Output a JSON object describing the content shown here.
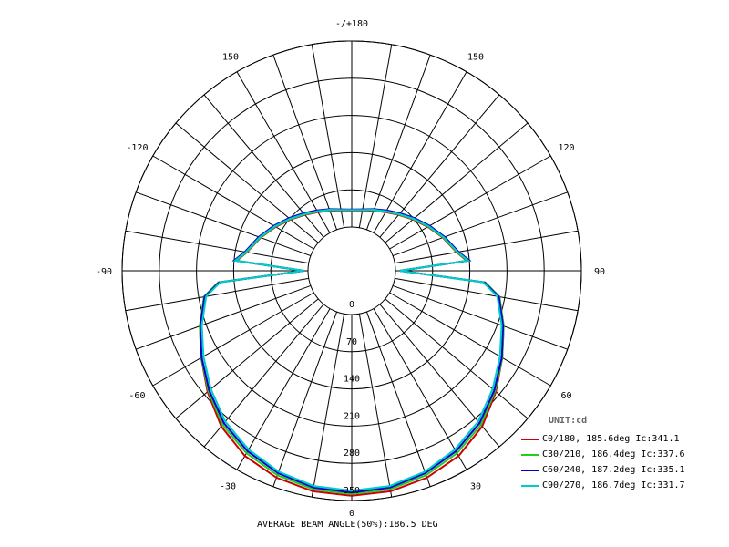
{
  "chart_data": {
    "type": "polar",
    "radial_ticks": [
      "0",
      "70",
      "140",
      "210",
      "280",
      "350"
    ],
    "radial_max": 350,
    "angle_labels": [
      {
        "deg": 180,
        "label": "-/+180"
      },
      {
        "deg": -150,
        "label": "-150"
      },
      {
        "deg": 150,
        "label": "150"
      },
      {
        "deg": -120,
        "label": "-120"
      },
      {
        "deg": 120,
        "label": "120"
      },
      {
        "deg": -90,
        "label": "-90"
      },
      {
        "deg": 90,
        "label": "90"
      },
      {
        "deg": -60,
        "label": "-60"
      },
      {
        "deg": 60,
        "label": "60"
      },
      {
        "deg": -30,
        "label": "-30"
      },
      {
        "deg": 30,
        "label": "30"
      },
      {
        "deg": 0,
        "label": "0"
      }
    ],
    "grid": true,
    "legend_title": "UNIT:cd",
    "series": [
      {
        "name": "C0/180, 185.6deg Ic:341.1",
        "color": "#cc0000",
        "angles": [
          0,
          10,
          20,
          30,
          40,
          50,
          60,
          70,
          80,
          85,
          90,
          95,
          100,
          110,
          120,
          130,
          140,
          150,
          160,
          170,
          180
        ],
        "values": [
          341.1,
          339,
          332,
          320,
          300,
          272,
          245,
          222,
          200,
          170,
          8,
          135,
          118,
          100,
          83,
          68,
          55,
          45,
          38,
          33,
          31
        ]
      },
      {
        "name": "C30/210, 186.4deg Ic:337.6",
        "color": "#22cc22",
        "angles": [
          0,
          10,
          20,
          30,
          40,
          50,
          60,
          70,
          80,
          85,
          90,
          95,
          100,
          110,
          120,
          130,
          140,
          150,
          160,
          170,
          180
        ],
        "values": [
          337.6,
          335,
          327,
          314,
          296,
          270,
          245,
          222,
          200,
          170,
          8,
          136,
          119,
          101,
          84,
          69,
          56,
          46,
          39,
          34,
          32
        ]
      },
      {
        "name": "C60/240, 187.2deg Ic:335.1",
        "color": "#0000cc",
        "angles": [
          0,
          10,
          20,
          30,
          40,
          50,
          60,
          70,
          80,
          85,
          90,
          95,
          100,
          110,
          120,
          130,
          140,
          150,
          160,
          170,
          180
        ],
        "values": [
          335.1,
          332,
          323,
          310,
          292,
          268,
          244,
          221,
          199,
          168,
          8,
          140,
          122,
          104,
          87,
          72,
          59,
          49,
          41,
          35,
          33
        ]
      },
      {
        "name": "C90/270, 186.7deg Ic:331.7",
        "color": "#00cccc",
        "angles": [
          0,
          10,
          20,
          30,
          40,
          50,
          60,
          70,
          80,
          85,
          90,
          95,
          100,
          110,
          120,
          130,
          140,
          150,
          160,
          170,
          180
        ],
        "values": [
          331.7,
          329,
          320,
          306,
          288,
          264,
          240,
          218,
          196,
          166,
          8,
          138,
          120,
          102,
          85,
          70,
          57,
          47,
          40,
          34,
          32
        ]
      }
    ],
    "footer": "AVERAGE BEAM ANGLE(50%):186.5 DEG"
  }
}
